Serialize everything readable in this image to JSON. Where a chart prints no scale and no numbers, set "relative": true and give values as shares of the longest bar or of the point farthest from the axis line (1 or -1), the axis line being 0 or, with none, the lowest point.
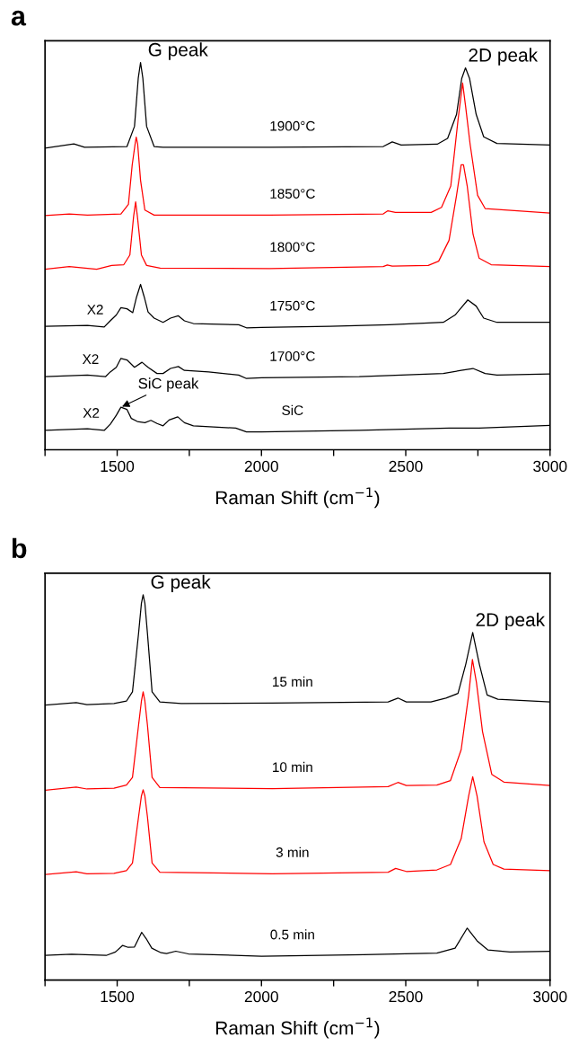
{
  "chart_data": [
    {
      "type": "line",
      "title": "a",
      "xlabel": "Raman Shift (cm$^{−1}$)",
      "relative": true,
      "xlim": [
        1250,
        3000
      ],
      "xticks": [
        {
          "value": 1250,
          "label": null
        },
        1500,
        {
          "value": 1750,
          "label": null
        },
        2000,
        {
          "value": 2250,
          "label": null
        },
        2500,
        {
          "value": 2750,
          "label": null
        },
        3000
      ],
      "series": [
        {
          "name": "1900°C",
          "color": "#000000",
          "x": [
            1250,
            1350,
            1387,
            1534,
            1560,
            1573,
            1581,
            1589,
            1602,
            1628,
            1659,
            2028,
            2422,
            2453,
            2484,
            2609,
            2645,
            2676,
            2694,
            2707,
            2721,
            2744,
            2770,
            2816,
            3000
          ],
          "values": [
            0.779,
            0.79,
            0.781,
            0.783,
            0.835,
            0.959,
            1.0,
            0.959,
            0.835,
            0.783,
            0.781,
            0.781,
            0.783,
            0.795,
            0.787,
            0.789,
            0.804,
            0.866,
            0.959,
            0.986,
            0.959,
            0.866,
            0.808,
            0.791,
            0.787
          ]
        },
        {
          "name": "1850°C",
          "color": "#ff0000",
          "x": [
            1250,
            1334,
            1397,
            1513,
            1539,
            1552,
            1562,
            1566,
            1571,
            1581,
            1596,
            1628,
            2028,
            2422,
            2438,
            2464,
            2588,
            2624,
            2656,
            2681,
            2697,
            2707,
            2723,
            2749,
            2775,
            3000
          ],
          "values": [
            0.605,
            0.609,
            0.606,
            0.609,
            0.634,
            0.735,
            0.789,
            0.807,
            0.789,
            0.696,
            0.619,
            0.606,
            0.606,
            0.609,
            0.617,
            0.613,
            0.613,
            0.626,
            0.681,
            0.851,
            0.947,
            0.889,
            0.789,
            0.657,
            0.623,
            0.611
          ]
        },
        {
          "name": "1800°C",
          "color": "#ff0000",
          "x": [
            1250,
            1334,
            1429,
            1481,
            1523,
            1544,
            1557,
            1564,
            1570,
            1584,
            1602,
            1649,
            2028,
            2422,
            2436,
            2453,
            2578,
            2614,
            2650,
            2676,
            2692,
            2700,
            2713,
            2733,
            2754,
            2796,
            3000
          ],
          "values": [
            0.466,
            0.473,
            0.466,
            0.476,
            0.478,
            0.503,
            0.603,
            0.64,
            0.603,
            0.503,
            0.476,
            0.469,
            0.468,
            0.473,
            0.477,
            0.474,
            0.476,
            0.487,
            0.541,
            0.657,
            0.736,
            0.736,
            0.681,
            0.557,
            0.495,
            0.478,
            0.473
          ]
        },
        {
          "name": "1750°C",
          "color": "#000000",
          "x": [
            1250,
            1397,
            1455,
            1476,
            1497,
            1513,
            1534,
            1554,
            1567,
            1581,
            1594,
            1607,
            1628,
            1659,
            1685,
            1712,
            1733,
            1764,
            1921,
            1948,
            2000,
            2236,
            2443,
            2630,
            2671,
            2715,
            2744,
            2770,
            2816,
            3000
          ],
          "values": [
            0.319,
            0.321,
            0.317,
            0.333,
            0.348,
            0.367,
            0.364,
            0.354,
            0.394,
            0.427,
            0.394,
            0.356,
            0.34,
            0.329,
            0.34,
            0.346,
            0.333,
            0.326,
            0.323,
            0.315,
            0.316,
            0.319,
            0.323,
            0.329,
            0.348,
            0.387,
            0.371,
            0.34,
            0.329,
            0.329
          ]
        },
        {
          "name": "1700°C",
          "color": "#000000",
          "x": [
            1250,
            1397,
            1460,
            1476,
            1497,
            1513,
            1534,
            1560,
            1586,
            1607,
            1638,
            1659,
            1685,
            1712,
            1733,
            1817,
            1921,
            1948,
            2000,
            2339,
            2630,
            2692,
            2733,
            2775,
            2816,
            3000
          ],
          "values": [
            0.189,
            0.193,
            0.189,
            0.201,
            0.213,
            0.236,
            0.232,
            0.213,
            0.226,
            0.213,
            0.197,
            0.197,
            0.21,
            0.215,
            0.205,
            0.201,
            0.193,
            0.184,
            0.186,
            0.189,
            0.197,
            0.205,
            0.21,
            0.197,
            0.193,
            0.196
          ]
        },
        {
          "name": "SiC",
          "color": "#000000",
          "x": [
            1250,
            1397,
            1455,
            1476,
            1497,
            1513,
            1534,
            1549,
            1570,
            1596,
            1617,
            1638,
            1659,
            1680,
            1710,
            1733,
            1764,
            1911,
            1948,
            2000,
            2339,
            2650,
            2754,
            3000
          ],
          "values": [
            0.05,
            0.054,
            0.05,
            0.066,
            0.089,
            0.11,
            0.104,
            0.081,
            0.073,
            0.07,
            0.076,
            0.068,
            0.062,
            0.077,
            0.085,
            0.07,
            0.062,
            0.056,
            0.046,
            0.046,
            0.05,
            0.056,
            0.056,
            0.063
          ]
        }
      ],
      "annotations": [
        {
          "text": "G peak",
          "x": 1581,
          "y": 1.0
        },
        {
          "text": "2D peak",
          "x": 2707,
          "y": 0.986
        },
        {
          "text": "X2",
          "x": 1424,
          "y": 0.32
        },
        {
          "text": "X2",
          "x": 1408,
          "y": 0.192
        },
        {
          "text": "X2",
          "x": 1410,
          "y": 0.053
        },
        {
          "text": "SiC peak",
          "x": 1513,
          "y": 0.11
        }
      ]
    },
    {
      "type": "line",
      "title": "b",
      "xlabel": "Raman Shift (cm$^{−1}$)",
      "relative": true,
      "xlim": [
        1250,
        3000
      ],
      "xticks": [
        {
          "value": 1250,
          "label": null
        },
        1500,
        {
          "value": 1750,
          "label": null
        },
        2000,
        {
          "value": 2250,
          "label": null
        },
        2500,
        {
          "value": 2750,
          "label": null
        },
        3000
      ],
      "series": [
        {
          "name": "15 min",
          "color": "#000000",
          "x": [
            1252,
            1358,
            1395,
            1489,
            1532,
            1553,
            1574,
            1584,
            1590,
            1596,
            1605,
            1621,
            1648,
            1722,
            2038,
            2439,
            2473,
            2502,
            2587,
            2639,
            2681,
            2708,
            2732,
            2755,
            2782,
            2819,
            3000
          ],
          "values": [
            0.714,
            0.72,
            0.715,
            0.718,
            0.724,
            0.748,
            0.899,
            0.978,
            1.0,
            0.978,
            0.899,
            0.748,
            0.722,
            0.718,
            0.719,
            0.722,
            0.732,
            0.722,
            0.722,
            0.732,
            0.744,
            0.82,
            0.902,
            0.82,
            0.74,
            0.729,
            0.722
          ]
        },
        {
          "name": "10 min",
          "color": "#ff0000",
          "x": [
            1252,
            1358,
            1395,
            1489,
            1532,
            1553,
            1574,
            1584,
            1590,
            1596,
            1605,
            1621,
            1648,
            2038,
            2439,
            2473,
            2502,
            2608,
            2655,
            2692,
            2718,
            2731,
            2745,
            2766,
            2798,
            2840,
            3000
          ],
          "values": [
            0.493,
            0.501,
            0.496,
            0.498,
            0.506,
            0.526,
            0.661,
            0.724,
            0.748,
            0.724,
            0.661,
            0.526,
            0.5,
            0.497,
            0.502,
            0.513,
            0.505,
            0.506,
            0.518,
            0.598,
            0.74,
            0.832,
            0.772,
            0.645,
            0.534,
            0.514,
            0.505
          ]
        },
        {
          "name": "3 min",
          "color": "#ff0000",
          "x": [
            1252,
            1358,
            1395,
            1489,
            1532,
            1553,
            1574,
            1584,
            1590,
            1596,
            1605,
            1621,
            1648,
            2038,
            2439,
            2465,
            2502,
            2608,
            2655,
            2692,
            2718,
            2732,
            2747,
            2771,
            2803,
            2840,
            3000
          ],
          "values": [
            0.274,
            0.281,
            0.276,
            0.277,
            0.284,
            0.304,
            0.423,
            0.478,
            0.494,
            0.478,
            0.423,
            0.304,
            0.28,
            0.276,
            0.28,
            0.29,
            0.282,
            0.286,
            0.3,
            0.367,
            0.478,
            0.528,
            0.478,
            0.359,
            0.3,
            0.288,
            0.284
          ]
        },
        {
          "name": "0.5 min",
          "color": "#000000",
          "x": [
            1250,
            1342,
            1462,
            1494,
            1519,
            1538,
            1560,
            1585,
            1601,
            1620,
            1652,
            1671,
            1703,
            1747,
            2000,
            2354,
            2608,
            2671,
            2713,
            2747,
            2785,
            2861,
            3000
          ],
          "values": [
            0.064,
            0.067,
            0.064,
            0.073,
            0.09,
            0.085,
            0.086,
            0.124,
            0.107,
            0.083,
            0.071,
            0.069,
            0.075,
            0.068,
            0.062,
            0.066,
            0.07,
            0.083,
            0.135,
            0.102,
            0.078,
            0.073,
            0.075
          ]
        }
      ],
      "annotations": [
        {
          "text": "G peak",
          "x": 1590,
          "y": 1.0
        },
        {
          "text": "2D peak",
          "x": 2732,
          "y": 0.902
        }
      ]
    }
  ]
}
